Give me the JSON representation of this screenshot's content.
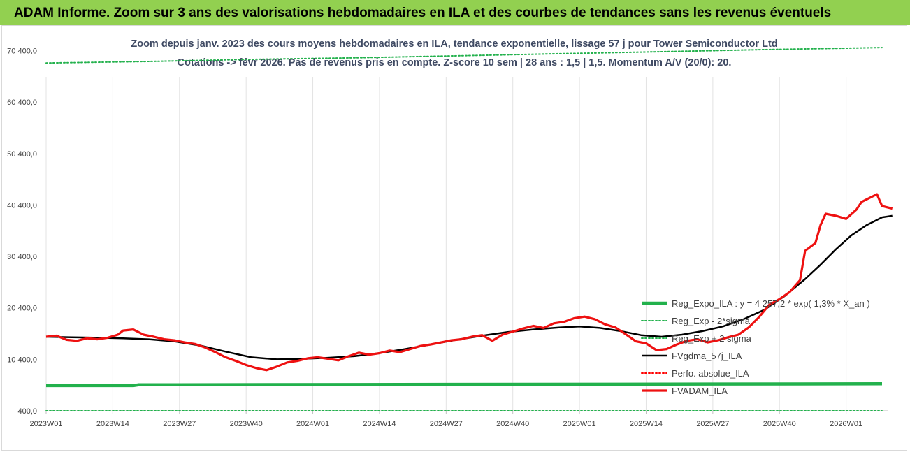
{
  "banner": {
    "title": "ADAM Informe. Zoom sur 3 ans des valorisations hebdomadaires en ILA et des courbes de tendances sans les revenus éventuels"
  },
  "colors": {
    "banner_bg": "#92d050",
    "reg_expo": "#22b14c",
    "reg_band": "#22b14c",
    "fvgdma": "#000000",
    "perfo": "#ff0000",
    "fvadam": "#ee1111"
  },
  "chart_data": {
    "type": "line",
    "title_line1": "Zoom depuis janv. 2023 des cours moyens hebdomadaires en ILA, tendance exponentielle, lissage 57 j pour Tower Semiconductor Ltd",
    "title_line2": "Cotations -> févr 2026. Pas de revenus pris en compte. Z-score 10 sem | 28 ans : 1,5 | 1,5. Momentum A/V (20/0): 20.",
    "ylim": [
      400,
      74000
    ],
    "y_ticks": [
      400,
      10400,
      20400,
      30400,
      40400,
      50400,
      60400,
      70400
    ],
    "y_tick_labels": [
      "400,0",
      "10 400,0",
      "20 400,0",
      "30 400,0",
      "40 400,0",
      "50 400,0",
      "60 400,0",
      "70 400,0"
    ],
    "grid": "vertical",
    "legend_position": "bottom-right",
    "x_range": [
      0,
      163
    ],
    "x_ticks": [
      {
        "i": 0,
        "label": "2023W01"
      },
      {
        "i": 13,
        "label": "2023W14"
      },
      {
        "i": 26,
        "label": "2023W27"
      },
      {
        "i": 39,
        "label": "2023W40"
      },
      {
        "i": 52,
        "label": "2024W01"
      },
      {
        "i": 65,
        "label": "2024W14"
      },
      {
        "i": 78,
        "label": "2024W27"
      },
      {
        "i": 91,
        "label": "2024W40"
      },
      {
        "i": 104,
        "label": "2025W01"
      },
      {
        "i": 117,
        "label": "2025W14"
      },
      {
        "i": 130,
        "label": "2025W27"
      },
      {
        "i": 143,
        "label": "2025W40"
      },
      {
        "i": 156,
        "label": "2026W01"
      }
    ],
    "series": [
      {
        "name": "Reg_Expo_ILA : y = 4 257,2 * exp( 1,3% *  X_an )",
        "style": "solid-thick",
        "color": "#22b14c",
        "points": [
          [
            0,
            5300
          ],
          [
            17,
            5300
          ],
          [
            18,
            5450
          ],
          [
            163,
            5650
          ]
        ]
      },
      {
        "name": "Reg_Exp - 2*sigma",
        "style": "dotted",
        "color": "#22b14c",
        "points": [
          [
            0,
            400
          ],
          [
            163,
            400
          ]
        ]
      },
      {
        "name": "Reg_Exp + 2 sigma",
        "style": "dotted",
        "color": "#22b14c",
        "points": [
          [
            0,
            68000
          ],
          [
            20,
            68300
          ],
          [
            40,
            68700
          ],
          [
            60,
            69000
          ],
          [
            80,
            69400
          ],
          [
            100,
            69800
          ],
          [
            120,
            70200
          ],
          [
            140,
            70600
          ],
          [
            163,
            71000
          ]
        ]
      },
      {
        "name": "FVgdma_57j_ILA",
        "style": "solid",
        "color": "#000000",
        "points": [
          [
            0,
            14800
          ],
          [
            5,
            14700
          ],
          [
            10,
            14600
          ],
          [
            15,
            14500
          ],
          [
            20,
            14300
          ],
          [
            25,
            13900
          ],
          [
            30,
            13100
          ],
          [
            35,
            11900
          ],
          [
            40,
            10800
          ],
          [
            45,
            10400
          ],
          [
            50,
            10500
          ],
          [
            55,
            10700
          ],
          [
            60,
            11000
          ],
          [
            65,
            11600
          ],
          [
            70,
            12400
          ],
          [
            75,
            13300
          ],
          [
            80,
            14200
          ],
          [
            85,
            15000
          ],
          [
            90,
            15700
          ],
          [
            95,
            16200
          ],
          [
            100,
            16600
          ],
          [
            104,
            16800
          ],
          [
            108,
            16500
          ],
          [
            112,
            15900
          ],
          [
            116,
            15100
          ],
          [
            120,
            14800
          ],
          [
            124,
            15200
          ],
          [
            128,
            15900
          ],
          [
            132,
            16800
          ],
          [
            136,
            18200
          ],
          [
            140,
            20000
          ],
          [
            144,
            22700
          ],
          [
            148,
            26000
          ],
          [
            151,
            28800
          ],
          [
            154,
            31800
          ],
          [
            157,
            34500
          ],
          [
            160,
            36500
          ],
          [
            163,
            38000
          ],
          [
            165,
            38300
          ]
        ]
      },
      {
        "name": "Perfo. absolue_ILA",
        "style": "dotted",
        "color": "#ff0000",
        "points": []
      },
      {
        "name": "FVADAM_ILA",
        "style": "solid-thick",
        "color": "#ee1111",
        "points": [
          [
            0,
            14800
          ],
          [
            2,
            15000
          ],
          [
            4,
            14200
          ],
          [
            6,
            14000
          ],
          [
            8,
            14500
          ],
          [
            10,
            14300
          ],
          [
            12,
            14600
          ],
          [
            14,
            15200
          ],
          [
            15,
            16000
          ],
          [
            17,
            16200
          ],
          [
            19,
            15200
          ],
          [
            21,
            14800
          ],
          [
            23,
            14300
          ],
          [
            25,
            14100
          ],
          [
            27,
            13700
          ],
          [
            29,
            13400
          ],
          [
            31,
            12700
          ],
          [
            33,
            11800
          ],
          [
            35,
            10800
          ],
          [
            37,
            10100
          ],
          [
            39,
            9300
          ],
          [
            41,
            8700
          ],
          [
            43,
            8300
          ],
          [
            45,
            9000
          ],
          [
            47,
            9800
          ],
          [
            49,
            10100
          ],
          [
            51,
            10600
          ],
          [
            53,
            10800
          ],
          [
            55,
            10500
          ],
          [
            57,
            10200
          ],
          [
            59,
            11000
          ],
          [
            61,
            11700
          ],
          [
            63,
            11300
          ],
          [
            65,
            11600
          ],
          [
            67,
            12100
          ],
          [
            69,
            11800
          ],
          [
            71,
            12400
          ],
          [
            73,
            13000
          ],
          [
            75,
            13300
          ],
          [
            77,
            13700
          ],
          [
            79,
            14100
          ],
          [
            81,
            14300
          ],
          [
            83,
            14800
          ],
          [
            85,
            15100
          ],
          [
            87,
            14000
          ],
          [
            89,
            15200
          ],
          [
            91,
            15800
          ],
          [
            93,
            16400
          ],
          [
            95,
            16900
          ],
          [
            97,
            16500
          ],
          [
            99,
            17400
          ],
          [
            101,
            17700
          ],
          [
            103,
            18400
          ],
          [
            105,
            18700
          ],
          [
            107,
            18200
          ],
          [
            109,
            17200
          ],
          [
            111,
            16600
          ],
          [
            113,
            15300
          ],
          [
            115,
            13900
          ],
          [
            117,
            13500
          ],
          [
            119,
            12200
          ],
          [
            121,
            12400
          ],
          [
            123,
            13300
          ],
          [
            125,
            14000
          ],
          [
            127,
            14300
          ],
          [
            129,
            13700
          ],
          [
            131,
            14100
          ],
          [
            133,
            14700
          ],
          [
            135,
            15200
          ],
          [
            137,
            16600
          ],
          [
            139,
            18600
          ],
          [
            141,
            21000
          ],
          [
            143,
            22100
          ],
          [
            145,
            23500
          ],
          [
            147,
            25800
          ],
          [
            148,
            31500
          ],
          [
            150,
            33000
          ],
          [
            151,
            36500
          ],
          [
            152,
            38700
          ],
          [
            154,
            38300
          ],
          [
            156,
            37700
          ],
          [
            158,
            39500
          ],
          [
            159,
            41000
          ],
          [
            160,
            41500
          ],
          [
            162,
            42500
          ],
          [
            163,
            40200
          ],
          [
            165,
            39700
          ]
        ]
      }
    ]
  }
}
